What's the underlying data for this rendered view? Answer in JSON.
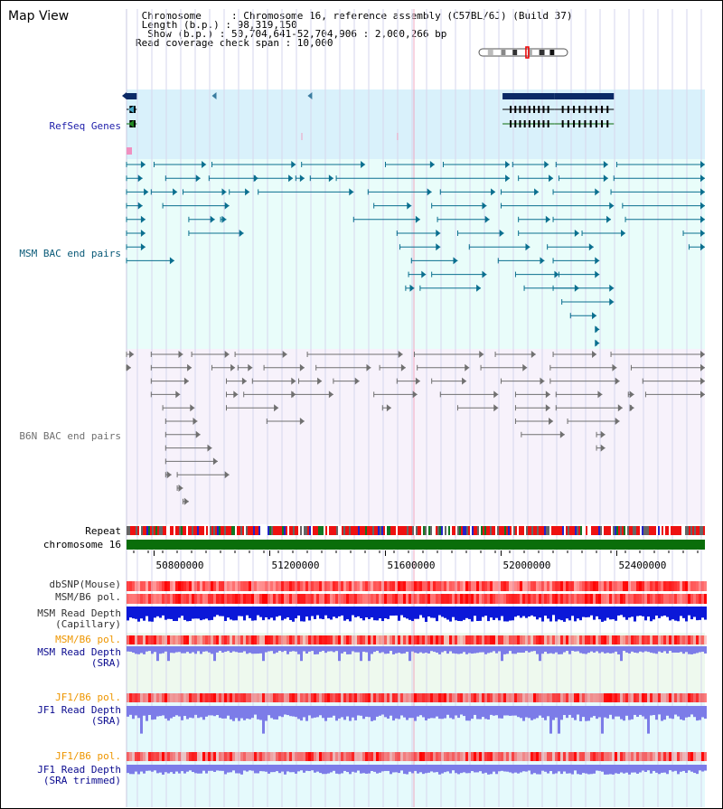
{
  "page": {
    "title": "Map View",
    "info": [
      " Chromosome     : Chromosome 16, reference assembly (C57BL/6J) (Build 37)",
      " Length (b.p.) : 98,319,150",
      "  Show (b.p.) : 50,704,641-52,704,906 : 2,000,266 bp",
      "Read coverage check span : 10,000"
    ]
  },
  "colors": {
    "refseq_bg": "#d9f1fb",
    "bac_bg": "#e9fdfa",
    "b6n_bg": "#f7f2fb",
    "msm": "#0a6f8f",
    "b6n": "#707070",
    "gene": "#0b2a66",
    "snp_color": "#ff0000",
    "depth_dark": "#0b18d8",
    "depth_light": "#7c7ce8",
    "label_navy": "#0a0a8f",
    "label_teal": "#0a5a78",
    "label_gray": "#707070",
    "label_orange": "#ee9600"
  },
  "tracks": [
    {
      "id": "refseq",
      "label": "RefSeq Genes",
      "color": "#1e1eaa"
    },
    {
      "id": "msm_bac",
      "label": "MSM BAC end pairs",
      "color": "#0a5a78"
    },
    {
      "id": "b6n_bac",
      "label": "B6N BAC end pairs",
      "color": "#707070"
    },
    {
      "id": "repeat",
      "label": "Repeat",
      "color": "#000000"
    },
    {
      "id": "chrom",
      "label": "chromosome 16",
      "color": "#000000"
    },
    {
      "id": "dbsnp",
      "label": "dbSNP(Mouse)",
      "color": "#333333"
    },
    {
      "id": "msm_b6_pol",
      "label": "MSM/B6 pol.",
      "color": "#333333"
    },
    {
      "id": "msm_depth_cap",
      "label": "MSM Read Depth\n(Capillary)",
      "color": "#333333"
    },
    {
      "id": "msm_b6_pol_sra",
      "label": "MSM/B6 pol.",
      "color": "#ee9600"
    },
    {
      "id": "msm_depth_sra",
      "label": "MSM Read Depth\n(SRA)",
      "color": "#0a0a8f"
    },
    {
      "id": "jf1_b6_pol",
      "label": "JF1/B6 pol.",
      "color": "#ee9600"
    },
    {
      "id": "jf1_depth_sra",
      "label": "JF1 Read Depth\n(SRA)",
      "color": "#0a0a8f"
    },
    {
      "id": "jf1_b6_pol_trim",
      "label": "JF1/B6 pol.",
      "color": "#ee9600"
    },
    {
      "id": "jf1_depth_trim",
      "label": "JF1 Read Depth\n(SRA trimmed)",
      "color": "#0a0a8f"
    }
  ],
  "chart_data": {
    "type": "genome_browser",
    "x_range": [
      50704641,
      52704906
    ],
    "axis_ticks": [
      50800000,
      51200000,
      51600000,
      52000000,
      52400000
    ],
    "axis_tick_labels": [
      "50800000",
      "51200000",
      "51600000",
      "52000000",
      "52400000"
    ],
    "chrom_band_marker": 0.53,
    "genes": [
      {
        "start": 50704641,
        "end": 50740000,
        "strand": "-",
        "type": "coding"
      },
      {
        "start": 51000000,
        "end": 51003000,
        "strand": "-",
        "type": "arrow"
      },
      {
        "start": 51331000,
        "end": 51334000,
        "strand": "-",
        "type": "arrow"
      },
      {
        "start": 52005000,
        "end": 52185000,
        "strand": "+",
        "type": "coding"
      },
      {
        "start": 52185000,
        "end": 52390000,
        "strand": "-",
        "type": "coding"
      }
    ],
    "msm_bac_rows": [
      [
        [
          50704641,
          50770000
        ],
        [
          50800000,
          50980000
        ],
        [
          51000000,
          51290000
        ],
        [
          51310000,
          51530000
        ],
        [
          51600000,
          51770000
        ],
        [
          51800000,
          52030000
        ],
        [
          52040000,
          52165000
        ],
        [
          52190000,
          52370000
        ],
        [
          52400000,
          52704906
        ]
      ],
      [
        [
          50704641,
          50760000
        ],
        [
          50840000,
          50960000
        ],
        [
          50990000,
          51160000
        ],
        [
          51150000,
          51280000
        ],
        [
          51290000,
          51320000
        ],
        [
          51340000,
          51420000
        ],
        [
          51430000,
          52030000
        ],
        [
          52060000,
          52180000
        ],
        [
          52200000,
          52370000
        ],
        [
          52390000,
          52704906
        ]
      ],
      [
        [
          50704641,
          50780000
        ],
        [
          50790000,
          50880000
        ],
        [
          50900000,
          51050000
        ],
        [
          51060000,
          51130000
        ],
        [
          51160000,
          51490000
        ],
        [
          51540000,
          51760000
        ],
        [
          51790000,
          51980000
        ],
        [
          52000000,
          52130000
        ],
        [
          52180000,
          52340000
        ],
        [
          52380000,
          52704906
        ]
      ],
      [
        [
          50704641,
          50760000
        ],
        [
          50830000,
          51060000
        ],
        [
          51560000,
          51690000
        ],
        [
          51760000,
          51950000
        ],
        [
          52000000,
          52390000
        ],
        [
          52420000,
          52704906
        ]
      ],
      [
        [
          50704641,
          50770000
        ],
        [
          50920000,
          51010000
        ],
        [
          51030000,
          51050000
        ],
        [
          51490000,
          51720000
        ],
        [
          51780000,
          51960000
        ],
        [
          52060000,
          52170000
        ],
        [
          52180000,
          52380000
        ],
        [
          52430000,
          52704906
        ]
      ],
      [
        [
          50704641,
          50770000
        ],
        [
          50920000,
          51110000
        ],
        [
          51640000,
          51790000
        ],
        [
          51850000,
          52010000
        ],
        [
          52060000,
          52270000
        ],
        [
          52280000,
          52430000
        ],
        [
          52630000,
          52704906
        ]
      ],
      [
        [
          50704641,
          50770000
        ],
        [
          51650000,
          51790000
        ],
        [
          51890000,
          52100000
        ],
        [
          52160000,
          52320000
        ],
        [
          52650000,
          52704906
        ]
      ],
      [
        [
          50704641,
          50870000
        ],
        [
          51690000,
          51850000
        ],
        [
          51990000,
          52150000
        ],
        [
          52180000,
          52340000
        ]
      ],
      [
        [
          51680000,
          51740000
        ],
        [
          51760000,
          51950000
        ],
        [
          52050000,
          52200000
        ],
        [
          52200000,
          52340000
        ]
      ],
      [
        [
          51670000,
          51700000
        ],
        [
          51720000,
          51930000
        ],
        [
          52080000,
          52270000
        ],
        [
          52180000,
          52390000
        ]
      ],
      [
        [
          52210000,
          52390000
        ]
      ],
      [
        [
          52240000,
          52330000
        ]
      ],
      [
        [
          52330000,
          52340000
        ]
      ],
      [
        [
          52330000,
          52340000
        ]
      ]
    ],
    "b6n_bac_rows": [
      [
        [
          50704641,
          50730000
        ],
        [
          50790000,
          50900000
        ],
        [
          50930000,
          51060000
        ],
        [
          51080000,
          51260000
        ],
        [
          51330000,
          51660000
        ],
        [
          51700000,
          51940000
        ],
        [
          51980000,
          52120000
        ],
        [
          52180000,
          52330000
        ],
        [
          52380000,
          52704906
        ]
      ],
      [
        [
          50704641,
          50720000
        ],
        [
          50790000,
          50930000
        ],
        [
          51000000,
          51080000
        ],
        [
          51090000,
          51140000
        ],
        [
          51180000,
          51320000
        ],
        [
          51360000,
          51550000
        ],
        [
          51580000,
          51670000
        ],
        [
          51710000,
          51890000
        ],
        [
          51930000,
          52090000
        ],
        [
          52170000,
          52400000
        ],
        [
          52450000,
          52704906
        ]
      ],
      [
        [
          50790000,
          50920000
        ],
        [
          51050000,
          51120000
        ],
        [
          51140000,
          51290000
        ],
        [
          51300000,
          51380000
        ],
        [
          51420000,
          51510000
        ],
        [
          51640000,
          51720000
        ],
        [
          51760000,
          51880000
        ],
        [
          52000000,
          52150000
        ],
        [
          52170000,
          52410000
        ],
        [
          52490000,
          52704906
        ]
      ],
      [
        [
          50790000,
          50890000
        ],
        [
          51050000,
          51090000
        ],
        [
          51110000,
          51290000
        ],
        [
          51280000,
          51420000
        ],
        [
          51560000,
          51710000
        ],
        [
          51790000,
          51990000
        ],
        [
          52050000,
          52170000
        ],
        [
          52190000,
          52350000
        ],
        [
          52440000,
          52460000
        ],
        [
          52500000,
          52704906
        ]
      ],
      [
        [
          50830000,
          50940000
        ],
        [
          51050000,
          51230000
        ],
        [
          51590000,
          51620000
        ],
        [
          51850000,
          51990000
        ],
        [
          52050000,
          52170000
        ],
        [
          52190000,
          52420000
        ],
        [
          52450000,
          52460000
        ]
      ],
      [
        [
          50840000,
          50950000
        ],
        [
          51190000,
          51320000
        ],
        [
          52050000,
          52180000
        ],
        [
          52230000,
          52410000
        ]
      ],
      [
        [
          50840000,
          50960000
        ],
        [
          52070000,
          52220000
        ],
        [
          52330000,
          52360000
        ]
      ],
      [
        [
          50840000,
          51000000
        ],
        [
          52330000,
          52360000
        ]
      ],
      [
        [
          50840000,
          51020000
        ]
      ],
      [
        [
          50840000,
          50860000
        ],
        [
          50880000,
          51060000
        ]
      ],
      [
        [
          50880000,
          50900000
        ]
      ],
      [
        [
          50900000,
          50920000
        ]
      ]
    ]
  }
}
